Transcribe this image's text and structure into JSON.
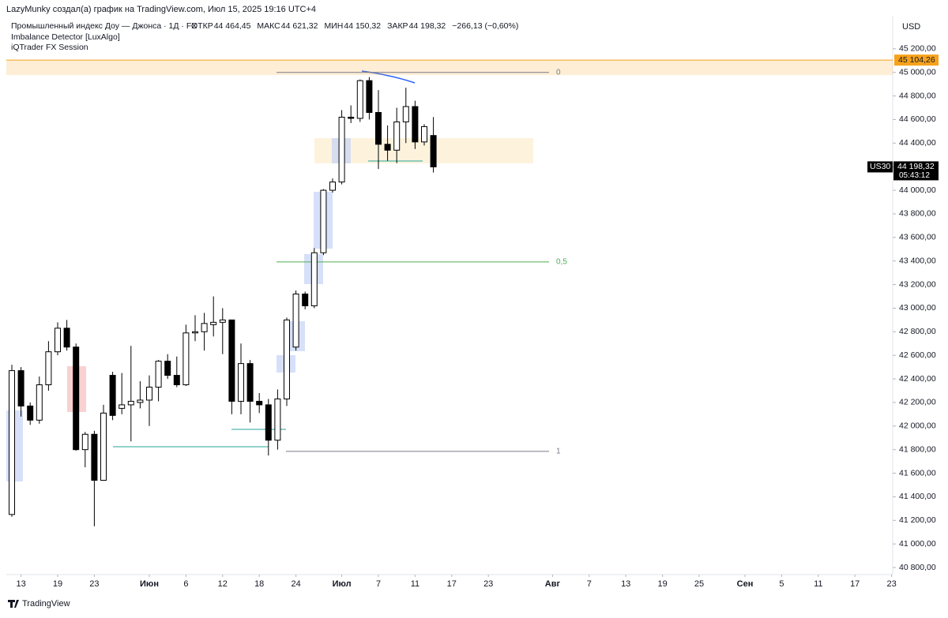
{
  "chart_data": {
    "type": "candlestick",
    "attribution": "LazyMunky создал(а) график на TradingView.com, Июл 15, 2025 19:16 UTC+4",
    "title": "Промышленный индекс Доу — Джонса · 1Д · FX",
    "ohlc_legend": [
      {
        "key": "ОТКР",
        "text": "44 464,45"
      },
      {
        "key": "МАКС",
        "text": "44 621,32"
      },
      {
        "key": "МИН",
        "text": "44 150,32"
      },
      {
        "key": "ЗАКР",
        "text": "44 198,32"
      }
    ],
    "change": "−266,13 (−0,60%)",
    "indicators": [
      "Imbalance Detector [LuxAlgo]",
      "iQTrader FX Session"
    ],
    "currency": "USD",
    "footer": "TradingView",
    "open": [
      41250,
      42470,
      42170,
      42050,
      42350,
      42630,
      42830,
      42670,
      41800,
      41930,
      41540,
      42430,
      42150,
      42180,
      42200,
      42220,
      42330,
      42550,
      42430,
      42350,
      42790,
      42800,
      42860,
      42880,
      42900,
      42210,
      42530,
      42210,
      42180,
      41880,
      42230,
      42670,
      43120,
      43020,
      43470,
      44000,
      44070,
      44620,
      44610,
      44930,
      44660,
      44390,
      44340,
      44580,
      44710,
      44410,
      44464.45
    ],
    "high": [
      42520,
      42500,
      42200,
      42420,
      42720,
      42880,
      42900,
      42700,
      41950,
      41960,
      42180,
      42460,
      42450,
      42680,
      42380,
      42430,
      42560,
      42610,
      42590,
      42860,
      42940,
      42960,
      43100,
      43000,
      42900,
      42700,
      42560,
      42280,
      42230,
      42310,
      42920,
      43150,
      43140,
      43510,
      44010,
      44100,
      44680,
      44720,
      44940,
      44960,
      44850,
      44550,
      44700,
      44870,
      44760,
      44560,
      44621.32
    ],
    "low": [
      41230,
      42080,
      42010,
      42020,
      42300,
      42600,
      42640,
      41790,
      41650,
      41150,
      41540,
      42050,
      42100,
      41870,
      42150,
      42000,
      42210,
      42400,
      42330,
      42340,
      42720,
      42640,
      42760,
      42610,
      42100,
      42100,
      42030,
      42110,
      41750,
      41800,
      42170,
      42640,
      42990,
      43000,
      43450,
      43980,
      44050,
      44570,
      44580,
      44600,
      44180,
      44250,
      44230,
      44400,
      44350,
      44380,
      44150.32
    ],
    "close": [
      42470,
      42170,
      42050,
      42350,
      42630,
      42830,
      42670,
      41800,
      41930,
      41540,
      42110,
      42090,
      42180,
      42210,
      42220,
      42330,
      42550,
      42430,
      42350,
      42790,
      42800,
      42870,
      42880,
      42900,
      42210,
      42530,
      42210,
      42180,
      41880,
      42230,
      42900,
      43120,
      43020,
      43470,
      44000,
      44070,
      44620,
      44610,
      44930,
      44660,
      44390,
      44340,
      44580,
      44710,
      44410,
      44540,
      44198.32
    ],
    "up_color": "#ffffff",
    "down_color": "#000000",
    "ylim": [
      40740,
      45480
    ],
    "yticks": [
      {
        "value": 40800,
        "label": "40 800,00"
      },
      {
        "value": 41000,
        "label": "41 000,00"
      },
      {
        "value": 41200,
        "label": "41 200,00"
      },
      {
        "value": 41400,
        "label": "41 400,00"
      },
      {
        "value": 41600,
        "label": "41 600,00"
      },
      {
        "value": 41800,
        "label": "41 800,00"
      },
      {
        "value": 42000,
        "label": "42 000,00"
      },
      {
        "value": 42200,
        "label": "42 200,00"
      },
      {
        "value": 42400,
        "label": "42 400,00"
      },
      {
        "value": 42600,
        "label": "42 600,00"
      },
      {
        "value": 42800,
        "label": "42 800,00"
      },
      {
        "value": 43000,
        "label": "43 000,00"
      },
      {
        "value": 43200,
        "label": "43 200,00"
      },
      {
        "value": 43400,
        "label": "43 400,00"
      },
      {
        "value": 43600,
        "label": "43 600,00"
      },
      {
        "value": 43800,
        "label": "43 800,00"
      },
      {
        "value": 44000,
        "label": "44 000,00"
      },
      {
        "value": 44200,
        "label": "44 200,00"
      },
      {
        "value": 44400,
        "label": "44 400,00"
      },
      {
        "value": 44600,
        "label": "44 600,00"
      },
      {
        "value": 44800,
        "label": "44 800,00"
      },
      {
        "value": 45000,
        "label": "45 000,00"
      },
      {
        "value": 45200,
        "label": "45 200,00"
      }
    ],
    "xticks": [
      {
        "value": 1,
        "label": "13"
      },
      {
        "value": 5,
        "label": "19"
      },
      {
        "value": 9,
        "label": "23"
      },
      {
        "value": 15,
        "label": "Июн"
      },
      {
        "value": 19,
        "label": "6"
      },
      {
        "value": 23,
        "label": "12"
      },
      {
        "value": 27,
        "label": "18"
      },
      {
        "value": 31,
        "label": "24"
      },
      {
        "value": 36,
        "label": "Июл"
      },
      {
        "value": 40,
        "label": "7"
      },
      {
        "value": 44,
        "label": "11"
      },
      {
        "value": 48,
        "label": "17"
      },
      {
        "value": 52,
        "label": "23"
      },
      {
        "value": 59,
        "label": "Авг"
      },
      {
        "value": 63,
        "label": "7"
      },
      {
        "value": 67,
        "label": "13"
      },
      {
        "value": 71,
        "label": "19"
      },
      {
        "value": 75,
        "label": "25"
      },
      {
        "value": 80,
        "label": "Сен"
      },
      {
        "value": 84,
        "label": "5"
      },
      {
        "value": 88,
        "label": "11"
      },
      {
        "value": 92,
        "label": "17"
      },
      {
        "value": 96,
        "label": "23"
      }
    ],
    "fib_levels": [
      {
        "value": 45000,
        "label": "0",
        "color": "#787b86"
      },
      {
        "value": 43392,
        "label": "0,5",
        "color": "#4caf50"
      },
      {
        "value": 41785,
        "label": "1",
        "color": "#787b86"
      }
    ],
    "session_level": {
      "value": 45104.26,
      "label": "45 104,26",
      "color": "#f7a21b"
    },
    "last_price": {
      "value": 44198.32,
      "label": "44 198,32",
      "symbol": "US30",
      "countdown": "05:43:12"
    }
  }
}
